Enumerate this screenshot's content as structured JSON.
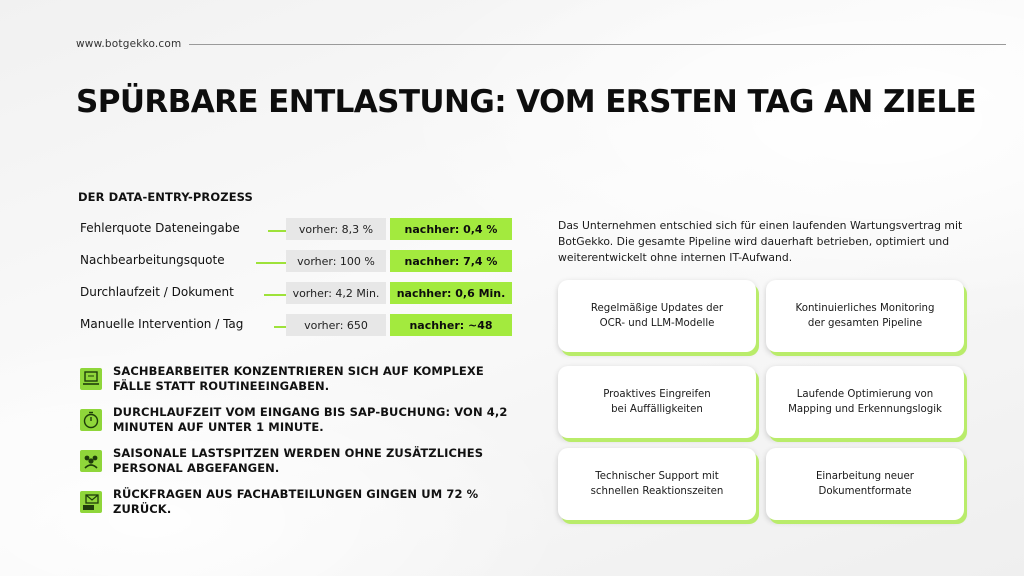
{
  "header": {
    "site_url": "www.botgekko.com",
    "title": "SPÜRBARE ENTLASTUNG: VOM ERSTEN TAG AN ZIELE"
  },
  "process": {
    "heading": "DER DATA-ENTRY-PROZESS",
    "metrics": [
      {
        "label": "Fehlerquote Dateneingabe",
        "before": "vorher: 8,3 %",
        "after": "nachher: 0,4 %"
      },
      {
        "label": "Nachbearbeitungsquote",
        "before": "vorher: 100 %",
        "after": "nachher: 7,4 %"
      },
      {
        "label": "Durchlaufzeit / Dokument",
        "before": "vorher: 4,2 Min.",
        "after": "nachher: 0,6 Min."
      },
      {
        "label": "Manuelle Intervention / Tag",
        "before": "vorher: 650",
        "after": "nachher: ~48"
      }
    ]
  },
  "benefits": [
    {
      "icon": "clerk-desk-icon",
      "text": "SACHBEARBEITER KONZENTRIEREN SICH AUF KOMPLEXE FÄLLE STATT ROUTINEEINGABEN."
    },
    {
      "icon": "stopwatch-icon",
      "text": "DURCHLAUFZEIT VOM EINGANG BIS SAP-BUCHUNG: VON 4,2 MINUTEN AUF UNTER 1 MINUTE."
    },
    {
      "icon": "team-icon",
      "text": "SAISONALE LASTSPITZEN WERDEN OHNE ZUSÄTZLICHES PERSONAL ABGEFANGEN."
    },
    {
      "icon": "help-mail-icon",
      "text": "RÜCKFRAGEN AUS FACHABTEILUNGEN GINGEN UM 72 % ZURÜCK."
    }
  ],
  "maintenance": {
    "intro": "Das Unternehmen entschied sich für einen laufenden Wartungsvertrag mit BotGekko. Die gesamte Pipeline wird dauerhaft betrieben, optimiert und weiterentwickelt ohne internen IT-Aufwand.",
    "cards": [
      "Regelmäßige Updates der\nOCR- und LLM-Modelle",
      "Kontinuierliches Monitoring\nder gesamten Pipeline",
      "Proaktives Eingreifen\nbei Auffälligkeiten",
      "Laufende Optimierung von\nMapping und Erkennungslogik",
      "Technischer Support mit\nschnellen Reaktionszeiten",
      "Einarbeitung neuer\nDokumentformate"
    ]
  },
  "colors": {
    "accent_green": "#a3ea3e",
    "icon_green": "#8fd63a",
    "before_gray": "#e7e7e7"
  }
}
